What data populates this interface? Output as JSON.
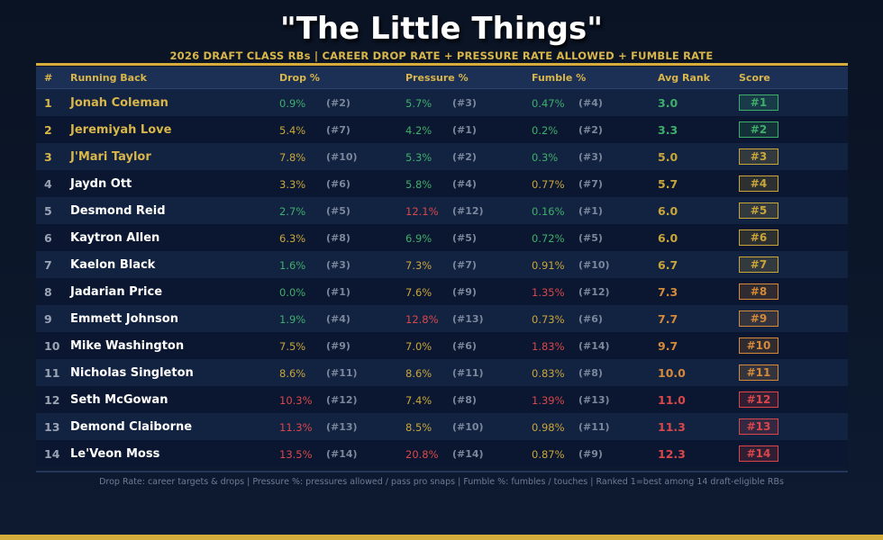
{
  "title": "\"The Little Things\"",
  "subtitle": "2026 DRAFT CLASS RBs  |  CAREER DROP RATE + PRESSURE RATE ALLOWED + FUMBLE RATE",
  "footnote": "Drop Rate: career targets & drops  |  Pressure %: pressures allowed / pass pro snaps  |  Fumble %: fumbles / touches  |  Ranked 1=best among 14 draft-eligible RBs",
  "colors": {
    "green": "#3fae6a",
    "yellow": "#c9a63a",
    "orange": "#d48a3a",
    "red": "#d9474a",
    "gold": "#d9b64a",
    "white": "#ffffff"
  },
  "chart_data": {
    "type": "table",
    "columns": {
      "rank": "#",
      "name": "Running Back",
      "drop": "Drop %",
      "pressure": "Pressure %",
      "fumble": "Fumble %",
      "avg": "Avg Rank",
      "score": "Score"
    },
    "rows": [
      {
        "rank": "1",
        "name": "Jonah Coleman",
        "drop": "0.9%",
        "drop_rank": "(#2)",
        "pressure": "5.7%",
        "pressure_rank": "(#3)",
        "fumble": "0.47%",
        "fumble_rank": "(#4)",
        "avg": "3.0",
        "score": "#1"
      },
      {
        "rank": "2",
        "name": "Jeremiyah Love",
        "drop": "5.4%",
        "drop_rank": "(#7)",
        "pressure": "4.2%",
        "pressure_rank": "(#1)",
        "fumble": "0.2%",
        "fumble_rank": "(#2)",
        "avg": "3.3",
        "score": "#2"
      },
      {
        "rank": "3",
        "name": "J'Mari Taylor",
        "drop": "7.8%",
        "drop_rank": "(#10)",
        "pressure": "5.3%",
        "pressure_rank": "(#2)",
        "fumble": "0.3%",
        "fumble_rank": "(#3)",
        "avg": "5.0",
        "score": "#3"
      },
      {
        "rank": "4",
        "name": "Jaydn Ott",
        "drop": "3.3%",
        "drop_rank": "(#6)",
        "pressure": "5.8%",
        "pressure_rank": "(#4)",
        "fumble": "0.77%",
        "fumble_rank": "(#7)",
        "avg": "5.7",
        "score": "#4"
      },
      {
        "rank": "5",
        "name": "Desmond Reid",
        "drop": "2.7%",
        "drop_rank": "(#5)",
        "pressure": "12.1%",
        "pressure_rank": "(#12)",
        "fumble": "0.16%",
        "fumble_rank": "(#1)",
        "avg": "6.0",
        "score": "#5"
      },
      {
        "rank": "6",
        "name": "Kaytron Allen",
        "drop": "6.3%",
        "drop_rank": "(#8)",
        "pressure": "6.9%",
        "pressure_rank": "(#5)",
        "fumble": "0.72%",
        "fumble_rank": "(#5)",
        "avg": "6.0",
        "score": "#6"
      },
      {
        "rank": "7",
        "name": "Kaelon Black",
        "drop": "1.6%",
        "drop_rank": "(#3)",
        "pressure": "7.3%",
        "pressure_rank": "(#7)",
        "fumble": "0.91%",
        "fumble_rank": "(#10)",
        "avg": "6.7",
        "score": "#7"
      },
      {
        "rank": "8",
        "name": "Jadarian Price",
        "drop": "0.0%",
        "drop_rank": "(#1)",
        "pressure": "7.6%",
        "pressure_rank": "(#9)",
        "fumble": "1.35%",
        "fumble_rank": "(#12)",
        "avg": "7.3",
        "score": "#8"
      },
      {
        "rank": "9",
        "name": "Emmett Johnson",
        "drop": "1.9%",
        "drop_rank": "(#4)",
        "pressure": "12.8%",
        "pressure_rank": "(#13)",
        "fumble": "0.73%",
        "fumble_rank": "(#6)",
        "avg": "7.7",
        "score": "#9"
      },
      {
        "rank": "10",
        "name": "Mike Washington",
        "drop": "7.5%",
        "drop_rank": "(#9)",
        "pressure": "7.0%",
        "pressure_rank": "(#6)",
        "fumble": "1.83%",
        "fumble_rank": "(#14)",
        "avg": "9.7",
        "score": "#10"
      },
      {
        "rank": "11",
        "name": "Nicholas Singleton",
        "drop": "8.6%",
        "drop_rank": "(#11)",
        "pressure": "8.6%",
        "pressure_rank": "(#11)",
        "fumble": "0.83%",
        "fumble_rank": "(#8)",
        "avg": "10.0",
        "score": "#11"
      },
      {
        "rank": "12",
        "name": "Seth McGowan",
        "drop": "10.3%",
        "drop_rank": "(#12)",
        "pressure": "7.4%",
        "pressure_rank": "(#8)",
        "fumble": "1.39%",
        "fumble_rank": "(#13)",
        "avg": "11.0",
        "score": "#12"
      },
      {
        "rank": "13",
        "name": "Demond Claiborne",
        "drop": "11.3%",
        "drop_rank": "(#13)",
        "pressure": "8.5%",
        "pressure_rank": "(#10)",
        "fumble": "0.98%",
        "fumble_rank": "(#11)",
        "avg": "11.3",
        "score": "#13"
      },
      {
        "rank": "14",
        "name": "Le'Veon Moss",
        "drop": "13.5%",
        "drop_rank": "(#14)",
        "pressure": "20.8%",
        "pressure_rank": "(#14)",
        "fumble": "0.87%",
        "fumble_rank": "(#9)",
        "avg": "12.3",
        "score": "#14"
      }
    ]
  }
}
